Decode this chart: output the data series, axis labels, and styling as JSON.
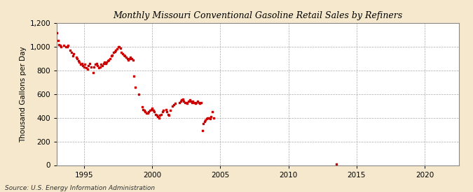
{
  "title": "Monthly Missouri Conventional Gasoline Retail Sales by Refiners",
  "ylabel": "Thousand Gallons per Day",
  "source": "Source: U.S. Energy Information Administration",
  "background_color": "#f5e8cc",
  "plot_background_color": "#ffffff",
  "dot_color": "#cc0000",
  "dot_size": 3,
  "xlim": [
    1993.0,
    2022.5
  ],
  "ylim": [
    0,
    1200
  ],
  "yticks": [
    0,
    200,
    400,
    600,
    800,
    1000,
    1200
  ],
  "xticks": [
    1995,
    2000,
    2005,
    2010,
    2015,
    2020
  ],
  "data": [
    [
      1993.0,
      1120
    ],
    [
      1993.08,
      1050
    ],
    [
      1993.17,
      1020
    ],
    [
      1993.25,
      1010
    ],
    [
      1993.33,
      1000
    ],
    [
      1993.5,
      1010
    ],
    [
      1993.67,
      1000
    ],
    [
      1993.75,
      1000
    ],
    [
      1993.83,
      1010
    ],
    [
      1994.0,
      970
    ],
    [
      1994.08,
      950
    ],
    [
      1994.17,
      920
    ],
    [
      1994.25,
      940
    ],
    [
      1994.42,
      910
    ],
    [
      1994.5,
      900
    ],
    [
      1994.58,
      880
    ],
    [
      1994.67,
      870
    ],
    [
      1994.75,
      850
    ],
    [
      1994.83,
      860
    ],
    [
      1994.92,
      840
    ],
    [
      1995.0,
      830
    ],
    [
      1995.08,
      850
    ],
    [
      1995.17,
      820
    ],
    [
      1995.25,
      810
    ],
    [
      1995.33,
      840
    ],
    [
      1995.42,
      860
    ],
    [
      1995.5,
      830
    ],
    [
      1995.67,
      780
    ],
    [
      1995.75,
      830
    ],
    [
      1995.83,
      850
    ],
    [
      1995.92,
      860
    ],
    [
      1996.0,
      840
    ],
    [
      1996.08,
      820
    ],
    [
      1996.17,
      830
    ],
    [
      1996.25,
      850
    ],
    [
      1996.33,
      840
    ],
    [
      1996.42,
      860
    ],
    [
      1996.5,
      870
    ],
    [
      1996.58,
      860
    ],
    [
      1996.67,
      870
    ],
    [
      1996.75,
      880
    ],
    [
      1996.83,
      890
    ],
    [
      1996.92,
      900
    ],
    [
      1997.0,
      920
    ],
    [
      1997.08,
      930
    ],
    [
      1997.17,
      950
    ],
    [
      1997.25,
      960
    ],
    [
      1997.33,
      970
    ],
    [
      1997.42,
      980
    ],
    [
      1997.5,
      1000
    ],
    [
      1997.58,
      1000
    ],
    [
      1997.67,
      990
    ],
    [
      1997.75,
      950
    ],
    [
      1997.83,
      940
    ],
    [
      1997.92,
      930
    ],
    [
      1998.0,
      920
    ],
    [
      1998.08,
      910
    ],
    [
      1998.17,
      900
    ],
    [
      1998.25,
      890
    ],
    [
      1998.33,
      900
    ],
    [
      1998.42,
      910
    ],
    [
      1998.5,
      900
    ],
    [
      1998.58,
      890
    ],
    [
      1998.67,
      750
    ],
    [
      1998.75,
      660
    ],
    [
      1999.0,
      600
    ],
    [
      1999.25,
      490
    ],
    [
      1999.33,
      470
    ],
    [
      1999.42,
      460
    ],
    [
      1999.5,
      450
    ],
    [
      1999.58,
      440
    ],
    [
      1999.67,
      440
    ],
    [
      1999.75,
      450
    ],
    [
      1999.83,
      460
    ],
    [
      1999.92,
      470
    ],
    [
      2000.0,
      480
    ],
    [
      2000.08,
      460
    ],
    [
      2000.17,
      450
    ],
    [
      2000.25,
      430
    ],
    [
      2000.33,
      420
    ],
    [
      2000.42,
      410
    ],
    [
      2000.5,
      400
    ],
    [
      2000.58,
      420
    ],
    [
      2000.67,
      430
    ],
    [
      2000.75,
      450
    ],
    [
      2000.83,
      460
    ],
    [
      2001.0,
      470
    ],
    [
      2001.08,
      450
    ],
    [
      2001.17,
      430
    ],
    [
      2001.25,
      420
    ],
    [
      2001.33,
      460
    ],
    [
      2001.5,
      500
    ],
    [
      2001.58,
      510
    ],
    [
      2001.67,
      520
    ],
    [
      2002.0,
      530
    ],
    [
      2002.08,
      540
    ],
    [
      2002.17,
      550
    ],
    [
      2002.25,
      560
    ],
    [
      2002.33,
      540
    ],
    [
      2002.42,
      530
    ],
    [
      2002.5,
      530
    ],
    [
      2002.58,
      520
    ],
    [
      2002.67,
      540
    ],
    [
      2002.75,
      550
    ],
    [
      2002.83,
      540
    ],
    [
      2002.92,
      530
    ],
    [
      2003.0,
      540
    ],
    [
      2003.08,
      530
    ],
    [
      2003.17,
      520
    ],
    [
      2003.25,
      530
    ],
    [
      2003.33,
      540
    ],
    [
      2003.42,
      530
    ],
    [
      2003.5,
      520
    ],
    [
      2003.58,
      530
    ],
    [
      2003.67,
      290
    ],
    [
      2003.75,
      350
    ],
    [
      2003.83,
      370
    ],
    [
      2003.92,
      380
    ],
    [
      2004.0,
      390
    ],
    [
      2004.08,
      400
    ],
    [
      2004.17,
      400
    ],
    [
      2004.25,
      390
    ],
    [
      2004.33,
      410
    ],
    [
      2004.42,
      450
    ],
    [
      2004.5,
      400
    ],
    [
      2013.5,
      10
    ]
  ]
}
